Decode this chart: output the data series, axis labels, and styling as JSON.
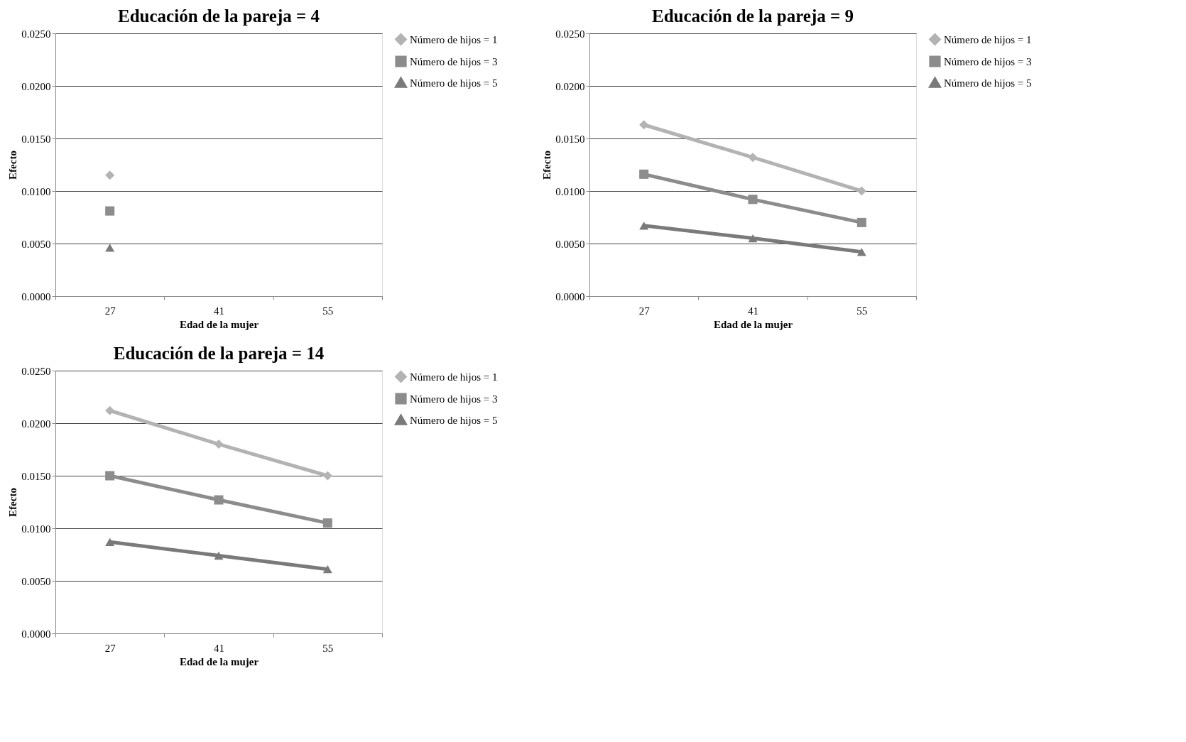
{
  "chart_data": [
    {
      "type": "line",
      "title": "Educación de la pareja = 4",
      "xlabel": "Edad de la mujer",
      "ylabel": "Efecto",
      "categories": [
        "27",
        "41",
        "55"
      ],
      "ylim": [
        0,
        0.025
      ],
      "yticks": [
        {
          "value": 0,
          "label": "0.0000"
        },
        {
          "value": 0.005,
          "label": "0.0050"
        },
        {
          "value": 0.01,
          "label": "0.0100"
        },
        {
          "value": 0.015,
          "label": "0.0150"
        },
        {
          "value": 0.02,
          "label": "0.0200"
        },
        {
          "value": 0.025,
          "label": "0.0250"
        }
      ],
      "grid": "y",
      "legend": "right",
      "line_style": "solid",
      "series": [
        {
          "name": "Número de hijos = 1",
          "color": "#b3b3b3",
          "marker": "diamond",
          "values": [
            0.0115,
            null,
            null
          ]
        },
        {
          "name": "Número de hijos = 3",
          "color": "#8c8c8c",
          "marker": "square",
          "values": [
            0.0081,
            null,
            null
          ]
        },
        {
          "name": "Número de hijos = 5",
          "color": "#7a7a7a",
          "marker": "triangle",
          "values": [
            0.0046,
            null,
            null
          ]
        }
      ]
    },
    {
      "type": "line",
      "title": "Educación de la pareja = 9",
      "xlabel": "Edad de la mujer",
      "ylabel": "Efecto",
      "categories": [
        "27",
        "41",
        "55"
      ],
      "ylim": [
        0,
        0.025
      ],
      "yticks": [
        {
          "value": 0,
          "label": "0.0000"
        },
        {
          "value": 0.005,
          "label": "0.0050"
        },
        {
          "value": 0.01,
          "label": "0.0100"
        },
        {
          "value": 0.015,
          "label": "0.0150"
        },
        {
          "value": 0.02,
          "label": "0.0200"
        },
        {
          "value": 0.025,
          "label": "0.0250"
        }
      ],
      "grid": "y",
      "legend": "right",
      "line_style": "solid",
      "series": [
        {
          "name": "Número de hijos = 1",
          "color": "#b3b3b3",
          "marker": "diamond",
          "values": [
            0.0163,
            0.0132,
            0.01
          ]
        },
        {
          "name": "Número de hijos = 3",
          "color": "#8c8c8c",
          "marker": "square",
          "values": [
            0.0116,
            0.0092,
            0.007
          ]
        },
        {
          "name": "Número de hijos = 5",
          "color": "#7a7a7a",
          "marker": "triangle",
          "values": [
            0.0067,
            0.0055,
            0.0042
          ]
        }
      ]
    },
    {
      "type": "line",
      "title": "Educación de la pareja = 14",
      "xlabel": "Edad de la mujer",
      "ylabel": "Efecto",
      "categories": [
        "27",
        "41",
        "55"
      ],
      "ylim": [
        0,
        0.025
      ],
      "yticks": [
        {
          "value": 0,
          "label": "0.0000"
        },
        {
          "value": 0.005,
          "label": "0.0050"
        },
        {
          "value": 0.01,
          "label": "0.0100"
        },
        {
          "value": 0.015,
          "label": "0.0150"
        },
        {
          "value": 0.02,
          "label": "0.0200"
        },
        {
          "value": 0.025,
          "label": "0.0250"
        }
      ],
      "grid": "y",
      "legend": "right",
      "line_style": "solid",
      "series": [
        {
          "name": "Número de hijos = 1",
          "color": "#b3b3b3",
          "marker": "diamond",
          "values": [
            0.0212,
            0.018,
            0.015
          ]
        },
        {
          "name": "Número de hijos = 3",
          "color": "#8c8c8c",
          "marker": "square",
          "values": [
            0.015,
            0.0127,
            0.0105
          ]
        },
        {
          "name": "Número de hijos = 5",
          "color": "#7a7a7a",
          "marker": "triangle",
          "values": [
            0.0087,
            0.0074,
            0.0061
          ]
        }
      ]
    }
  ]
}
